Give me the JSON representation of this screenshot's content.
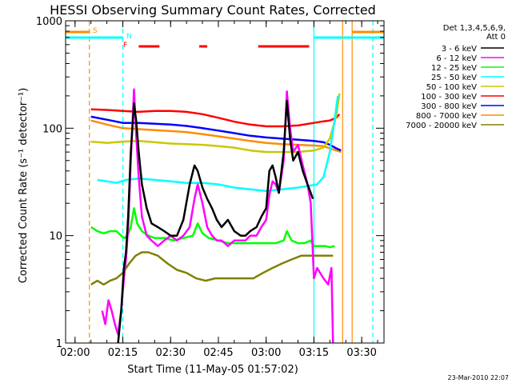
{
  "chart_data": {
    "type": "line",
    "title": "HESSI Observing Summary Count Rates, Corrected",
    "xlabel": "Start Time (11-May-05 01:57:02)",
    "ylabel": "Corrected Count Rate (s⁻¹ detector⁻¹)",
    "y_scale": "log",
    "ylim": [
      1,
      1000
    ],
    "y_ticks": [
      {
        "value": 1,
        "label": "1"
      },
      {
        "value": 10,
        "label": "10"
      },
      {
        "value": 100,
        "label": "100"
      },
      {
        "value": 1000,
        "label": "1000"
      }
    ],
    "xlim": [
      "01:57:02",
      "03:37:00"
    ],
    "x_ticks": [
      {
        "value": "02:00",
        "label": "02:00"
      },
      {
        "value": "02:15",
        "label": "02:15"
      },
      {
        "value": "02:30",
        "label": "02:30"
      },
      {
        "value": "02:45",
        "label": "02:45"
      },
      {
        "value": "03:00",
        "label": "03:00"
      },
      {
        "value": "03:15",
        "label": "03:15"
      },
      {
        "value": "03:30",
        "label": "03:30"
      }
    ],
    "legend_title": [
      "Det 1,3,4,5,6,9,",
      "Att 0"
    ],
    "legend_position": "right",
    "series": [
      {
        "name": "3 - 6 keV",
        "color": "#000000",
        "x": [
          "02:13:30",
          "02:14:30",
          "02:15:20",
          "02:16:00",
          "02:16:40",
          "02:17:30",
          "02:18:30",
          "02:19:10",
          "02:20:00",
          "02:21:00",
          "02:22:30",
          "02:24:00",
          "02:26:00",
          "02:28:00",
          "02:30:00",
          "02:32:00",
          "02:34:00",
          "02:36:00",
          "02:37:30",
          "02:38:30",
          "02:40:00",
          "02:41:30",
          "02:43:00",
          "02:44:30",
          "02:46:00",
          "02:48:00",
          "02:50:00",
          "02:52:00",
          "02:53:30",
          "02:55:00",
          "02:57:00",
          "02:58:30",
          "03:00:00",
          "03:01:00",
          "03:02:00",
          "03:03:00",
          "03:04:00",
          "03:05:30",
          "03:06:30",
          "03:07:30",
          "03:08:30",
          "03:10:00",
          "03:11:30",
          "03:13:00",
          "03:14:00",
          "03:14:40"
        ],
        "y": [
          1,
          2,
          5,
          7,
          15,
          60,
          170,
          120,
          60,
          30,
          18,
          13,
          12,
          11,
          10,
          10,
          14,
          30,
          45,
          40,
          28,
          22,
          18,
          14,
          12,
          14,
          11,
          10,
          10,
          11,
          12,
          15,
          18,
          40,
          45,
          35,
          25,
          60,
          180,
          80,
          50,
          60,
          40,
          30,
          25,
          22
        ]
      },
      {
        "name": "6 - 12 keV",
        "color": "#ff00ff",
        "x": [
          "02:08:30",
          "02:09:30",
          "02:10:30",
          "02:11:30",
          "02:12:30",
          "02:13:30",
          "02:14:30",
          "02:15:20",
          "02:16:00",
          "02:16:40",
          "02:17:30",
          "02:18:30",
          "02:19:10",
          "02:20:00",
          "02:21:00",
          "02:22:30",
          "02:24:00",
          "02:26:00",
          "02:28:00",
          "02:30:00",
          "02:32:00",
          "02:34:00",
          "02:36:00",
          "02:37:30",
          "02:38:30",
          "02:40:00",
          "02:41:30",
          "02:43:00",
          "02:44:30",
          "02:46:00",
          "02:48:00",
          "02:50:00",
          "02:52:00",
          "02:53:30",
          "02:55:00",
          "02:57:00",
          "02:58:30",
          "03:00:00",
          "03:01:00",
          "03:02:00",
          "03:03:00",
          "03:04:00",
          "03:05:30",
          "03:06:30",
          "03:07:30",
          "03:08:30",
          "03:10:00",
          "03:11:30",
          "03:13:00",
          "03:14:00",
          "03:15:00",
          "03:16:00",
          "03:18:00",
          "03:19:30",
          "03:20:30",
          "03:21:00"
        ],
        "y": [
          2,
          1.5,
          2.5,
          2,
          1.5,
          1.2,
          2,
          4,
          6,
          12,
          50,
          230,
          90,
          35,
          15,
          10,
          9,
          8,
          9,
          10,
          9,
          10,
          12,
          22,
          30,
          20,
          12,
          10,
          9,
          9,
          8,
          9,
          9,
          9,
          10,
          10,
          12,
          14,
          24,
          32,
          30,
          25,
          50,
          220,
          100,
          60,
          70,
          45,
          30,
          20,
          4,
          5,
          4,
          3.5,
          5,
          1
        ]
      },
      {
        "name": "12 - 25 keV",
        "color": "#00ff00",
        "x": [
          "02:05:00",
          "02:07:00",
          "02:09:00",
          "02:11:00",
          "02:13:00",
          "02:14:30",
          "02:15:30",
          "02:16:30",
          "02:17:30",
          "02:18:30",
          "02:19:30",
          "02:21:00",
          "02:23:00",
          "02:25:00",
          "02:28:00",
          "02:31:00",
          "02:34:00",
          "02:37:00",
          "02:38:30",
          "02:40:00",
          "02:42:00",
          "02:45:00",
          "02:48:00",
          "02:51:00",
          "02:54:00",
          "02:57:00",
          "03:00:00",
          "03:03:00",
          "03:05:30",
          "03:06:30",
          "03:08:00",
          "03:10:00",
          "03:12:00",
          "03:14:00",
          "03:15:00",
          "03:16:30",
          "03:18:30",
          "03:20:00",
          "03:21:30"
        ],
        "y": [
          12,
          11,
          10.5,
          11,
          11,
          10,
          9.5,
          10,
          12,
          18,
          13,
          11,
          10,
          9.5,
          9.5,
          9,
          9.5,
          10,
          13,
          10.5,
          9.5,
          9,
          8.5,
          8.5,
          8.5,
          8.5,
          8.5,
          8.5,
          9,
          11,
          9,
          8.5,
          8.5,
          9,
          8,
          8,
          8,
          7.8,
          8
        ]
      },
      {
        "name": "25 - 50 keV",
        "color": "#00ffff",
        "x": [
          "02:07:00",
          "02:10:00",
          "02:13:00",
          "02:16:00",
          "02:20:00",
          "02:25:00",
          "02:30:00",
          "02:35:00",
          "02:40:00",
          "02:45:00",
          "02:50:00",
          "02:55:00",
          "03:00:00",
          "03:05:00",
          "03:10:00",
          "03:13:00",
          "03:16:00",
          "03:18:00",
          "03:20:00",
          "03:21:30",
          "03:22:30"
        ],
        "y": [
          33,
          32,
          31,
          33,
          34,
          33,
          32,
          31,
          31,
          30,
          28,
          27,
          26,
          27,
          28,
          29,
          30,
          35,
          60,
          120,
          200
        ]
      },
      {
        "name": "50 - 100 keV",
        "color": "#c8c800",
        "x": [
          "02:05:00",
          "02:10:00",
          "02:15:00",
          "02:20:00",
          "02:25:00",
          "02:30:00",
          "02:35:00",
          "02:40:00",
          "02:45:00",
          "02:50:00",
          "02:55:00",
          "03:00:00",
          "03:05:00",
          "03:10:00",
          "03:15:00",
          "03:18:00",
          "03:20:00",
          "03:22:00",
          "03:23:00"
        ],
        "y": [
          75,
          73,
          75,
          76,
          74,
          72,
          71,
          70,
          68,
          66,
          62,
          60,
          60,
          60,
          62,
          66,
          80,
          130,
          210
        ]
      },
      {
        "name": "100 - 300 keV",
        "color": "#ff0000",
        "x": [
          "02:05:00",
          "02:10:00",
          "02:15:00",
          "02:20:00",
          "02:25:00",
          "02:30:00",
          "02:35:00",
          "02:40:00",
          "02:45:00",
          "02:50:00",
          "02:55:00",
          "03:00:00",
          "03:05:00",
          "03:10:00",
          "03:15:00",
          "03:18:00",
          "03:20:00",
          "03:22:00",
          "03:23:00"
        ],
        "y": [
          150,
          148,
          145,
          142,
          145,
          145,
          142,
          135,
          125,
          115,
          108,
          104,
          104,
          106,
          112,
          116,
          118,
          125,
          135
        ]
      },
      {
        "name": "300 - 800 keV",
        "color": "#0000ff",
        "x": [
          "02:05:00",
          "02:10:00",
          "02:15:00",
          "02:20:00",
          "02:25:00",
          "02:30:00",
          "02:35:00",
          "02:40:00",
          "02:45:00",
          "02:50:00",
          "02:55:00",
          "03:00:00",
          "03:05:00",
          "03:10:00",
          "03:15:00",
          "03:18:00",
          "03:20:00",
          "03:22:00",
          "03:23:30"
        ],
        "y": [
          128,
          120,
          112,
          112,
          110,
          108,
          105,
          100,
          95,
          90,
          85,
          82,
          80,
          78,
          76,
          74,
          70,
          65,
          62
        ]
      },
      {
        "name": "800 - 7000 keV",
        "color": "#ff8c00",
        "x": [
          "02:05:00",
          "02:10:00",
          "02:15:00",
          "02:20:00",
          "02:25:00",
          "02:30:00",
          "02:35:00",
          "02:40:00",
          "02:45:00",
          "02:50:00",
          "02:55:00",
          "03:00:00",
          "03:05:00",
          "03:10:00",
          "03:15:00",
          "03:18:00",
          "03:20:00",
          "03:22:00",
          "03:23:30"
        ],
        "y": [
          118,
          108,
          100,
          98,
          96,
          94,
          92,
          88,
          84,
          80,
          76,
          73,
          71,
          70,
          69,
          68,
          65,
          62,
          60
        ]
      },
      {
        "name": "7000 - 20000 keV",
        "color": "#808000",
        "x": [
          "02:05:00",
          "02:07:00",
          "02:09:00",
          "02:11:00",
          "02:13:00",
          "02:15:00",
          "02:17:00",
          "02:19:00",
          "02:21:00",
          "02:23:00",
          "02:26:00",
          "02:29:00",
          "02:32:00",
          "02:35:00",
          "02:38:00",
          "02:41:00",
          "02:44:00",
          "02:47:00",
          "02:50:00",
          "02:53:00",
          "02:56:00",
          "02:59:00",
          "03:02:00",
          "03:05:00",
          "03:08:00",
          "03:11:00",
          "03:14:00",
          "03:17:00",
          "03:19:00",
          "03:21:00"
        ],
        "y": [
          3.5,
          3.8,
          3.5,
          3.8,
          4,
          4.5,
          5.5,
          6.5,
          7,
          7,
          6.5,
          5.5,
          4.8,
          4.5,
          4,
          3.8,
          4,
          4,
          4,
          4,
          4,
          4.5,
          5,
          5.5,
          6,
          6.5,
          6.5,
          6.5,
          6.5,
          6.5
        ]
      }
    ],
    "flag_bars": [
      {
        "label": "S",
        "color": "#ff8c00",
        "segments": [
          [
            "01:57:02",
            "02:04:30"
          ],
          [
            "03:27:00",
            "03:37:00"
          ]
        ]
      },
      {
        "label": "N",
        "color": "#00ffff",
        "segments": [
          [
            "01:57:02",
            "02:15:00"
          ],
          [
            "03:15:00",
            "03:37:00"
          ]
        ]
      },
      {
        "label": "F",
        "color": "#ff0000",
        "segments": [
          [
            "02:20:00",
            "02:26:30"
          ],
          [
            "02:39:00",
            "02:41:30"
          ],
          [
            "02:57:30",
            "03:13:30"
          ]
        ]
      }
    ],
    "vertical_lines": [
      {
        "x": "02:04:30",
        "color": "#ff8c00",
        "dashed": true
      },
      {
        "x": "02:15:00",
        "color": "#00ffff",
        "dashed": true
      },
      {
        "x": "03:15:00",
        "color": "#00ffff",
        "dashed": false
      },
      {
        "x": "03:24:00",
        "color": "#ff8c00",
        "dashed": false
      },
      {
        "x": "03:27:00",
        "color": "#ff8c00",
        "dashed": false
      },
      {
        "x": "03:33:30",
        "color": "#00ffff",
        "dashed": true
      }
    ],
    "grid": false
  },
  "footer": {
    "timestamp": "23-Mar-2010 22:07"
  }
}
